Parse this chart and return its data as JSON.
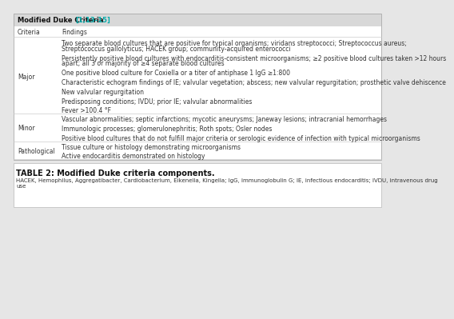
{
  "title_header_plain": "Modified Duke Criteria ",
  "title_header_cite": "[1,13-15]",
  "header_bg": "#d8d8d8",
  "table_bg": "#ffffff",
  "outer_bg": "#e6e6e6",
  "categories": [
    {
      "cat": "Major",
      "findings": [
        "Two separate blood cultures that are positive for typical organisms; viridans streptococci; Streptococcus aureus;\nStreptococcus gallolyticus; HACEK group; community-acquired enterococci",
        "Persistently positive blood cultures with endocarditis-consistent microorganisms; ≥2 positive blood cultures taken >12 hours\napart; all 3 or majority of ≥4 separate blood cultures",
        "One positive blood culture for Coxiella or a titer of antiphase 1 IgG ≥1:800",
        "Characteristic echogram findings of IE; valvular vegetation; abscess; new valvular regurgitation; prosthetic valve dehiscence",
        "New valvular regurgitation",
        "Predisposing conditions; IVDU; prior IE; valvular abnormalities",
        "Fever >100.4 °F"
      ]
    },
    {
      "cat": "Minor",
      "findings": [
        "Vascular abnormalities; septic infarctions; mycotic aneurysms; Janeway lesions; intracranial hemorrhages",
        "Immunologic processes; glomerulonephritis; Roth spots; Osler nodes",
        "Positive blood cultures that do not fulfill major criteria or serologic evidence of infection with typical microorganisms"
      ]
    },
    {
      "cat": "Pathological",
      "findings": [
        "Tissue culture or histology demonstrating microorganisms",
        "Active endocarditis demonstrated on histology"
      ]
    }
  ],
  "table2_title": "TABLE 2: Modified Duke criteria components.",
  "table2_footnote": "HACEK, Hemophilus, Aggregatibacter, Cardiobacterium, Eikenella, Kingella; IgG, immunoglobulin G; IE, infectious endocarditis; IVDU, intravenous drug\nuse",
  "cite_color": "#00aaaa",
  "text_color": "#333333",
  "body_font_size": 5.5,
  "header_font_size": 6.0,
  "col_header_font_size": 5.5,
  "table2_title_font_size": 7.0,
  "footnote_font_size": 5.0
}
